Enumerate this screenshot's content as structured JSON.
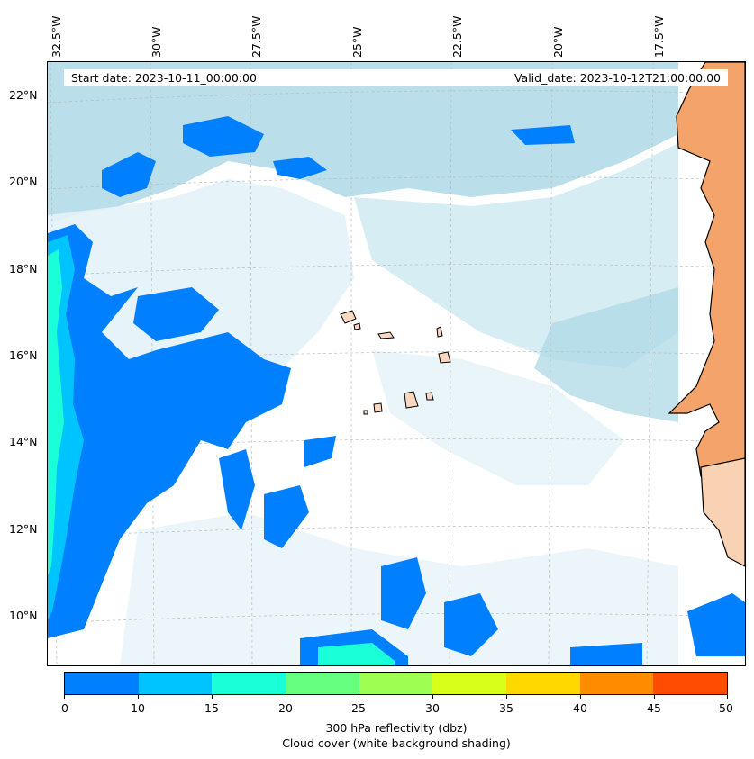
{
  "header": {
    "start_date": "Start date: 2023-10-11_00:00:00",
    "valid_date": "Valid_date: 2023-10-12T21:00:00.00"
  },
  "axes": {
    "longitude_labels": [
      "32.5°W",
      "30°W",
      "27.5°W",
      "25°W",
      "22.5°W",
      "20°W",
      "17.5°W"
    ],
    "latitude_labels": [
      "22°N",
      "20°N",
      "18°N",
      "16°N",
      "14°N",
      "12°N",
      "10°N"
    ],
    "gridlines": "dashed light grey"
  },
  "colorbar": {
    "ticks": [
      "0",
      "10",
      "15",
      "20",
      "25",
      "30",
      "35",
      "40",
      "45",
      "50"
    ],
    "colors": [
      "#0080ff",
      "#00c4ff",
      "#1affd8",
      "#66ff80",
      "#9eff52",
      "#d8ff1a",
      "#ffd800",
      "#ff8c00",
      "#ff4c00"
    ],
    "label_line1": "300 hPa reflectivity (dbz)",
    "label_line2": "Cloud cover (white background shading)"
  },
  "map_colors": {
    "ocean_cloud": "#aed8e6",
    "land": "#f4a46a",
    "land_light": "#f9d1b3",
    "islands": "#f9d7c0",
    "reflectivity_low": "#0080ff",
    "reflectivity_mid": "#00c4ff",
    "reflectivity_high": "#1affd8"
  }
}
